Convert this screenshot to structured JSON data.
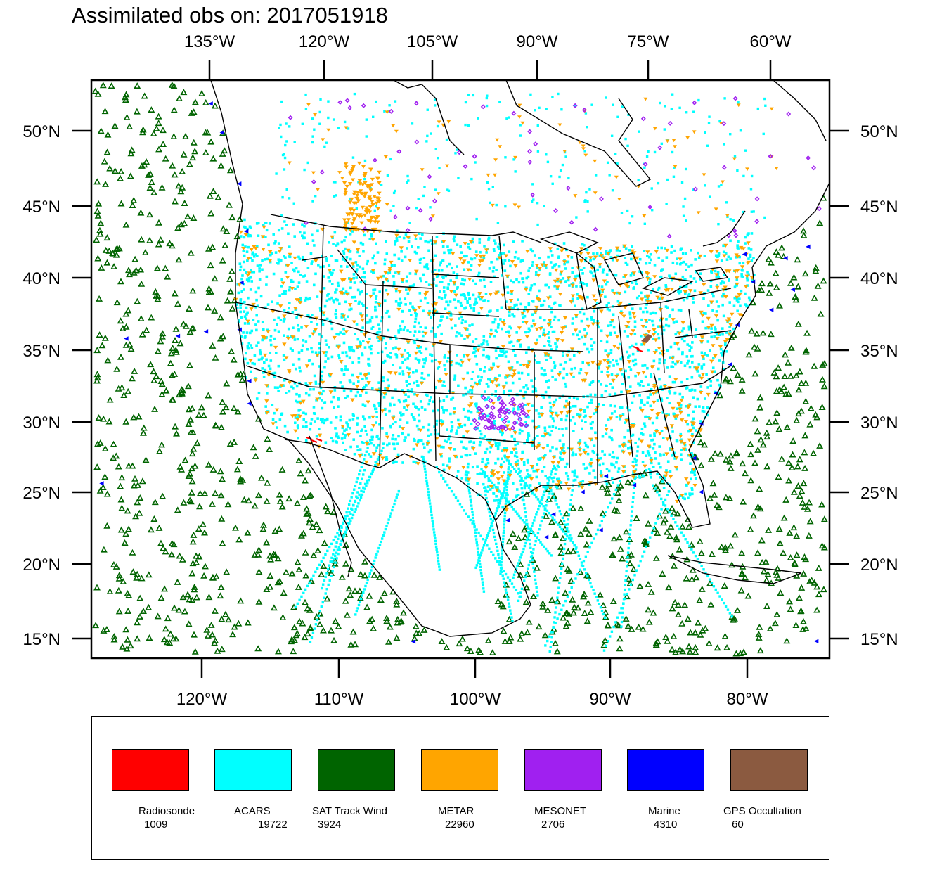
{
  "title": "Assimilated obs on: 2017051918",
  "top_axis_labels": [
    "135°W",
    "120°W",
    "105°W",
    "90°W",
    "75°W",
    "60°W"
  ],
  "bottom_axis_labels": [
    "120°W",
    "110°W",
    "100°W",
    "90°W",
    "80°W"
  ],
  "left_axis_labels": [
    "50°N",
    "45°N",
    "40°N",
    "35°N",
    "30°N",
    "25°N",
    "20°N",
    "15°N"
  ],
  "right_axis_labels": [
    "50°N",
    "45°N",
    "40°N",
    "35°N",
    "30°N",
    "25°N",
    "20°N",
    "15°N"
  ],
  "legend": [
    {
      "name": "Radiosonde",
      "count": "1009",
      "color": "#ff0000"
    },
    {
      "name": "ACARS",
      "count": "19722",
      "color": "#00ffff"
    },
    {
      "name": "SAT Track Wind",
      "count": "3924",
      "color": "#006400"
    },
    {
      "name": "METAR",
      "count": "22960",
      "color": "#ffa500"
    },
    {
      "name": "MESONET",
      "count": "2706",
      "color": "#a020f0"
    },
    {
      "name": "Marine",
      "count": "4310",
      "color": "#0000ff"
    },
    {
      "name": "GPS Occultation",
      "count": "60",
      "color": "#8b5a40"
    }
  ],
  "map": {
    "projection": "lambert-conformal",
    "extent": {
      "lon_min": -128,
      "lon_max": -58,
      "lat_min": 14,
      "lat_max": 53
    },
    "observation_types": [
      "SAT Track Wind",
      "ACARS",
      "METAR",
      "MESONET",
      "Marine",
      "Radiosonde",
      "GPS Occultation"
    ]
  }
}
